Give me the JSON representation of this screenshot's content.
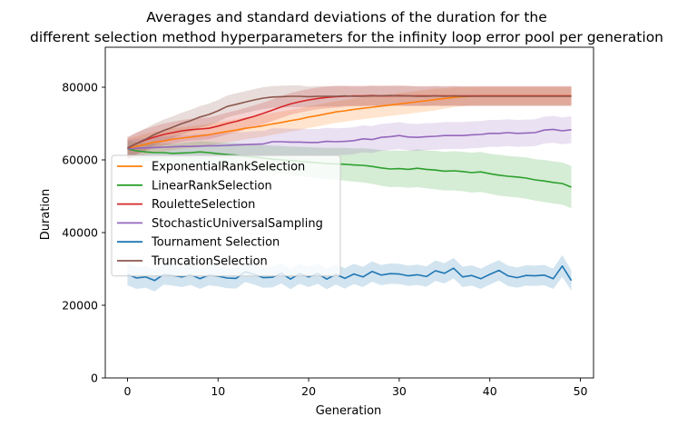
{
  "chart_data": {
    "type": "line",
    "title_lines": [
      "Averages and standard deviations of the duration for the",
      "different selection method hyperparameters for the infinity loop error pool per generation"
    ],
    "xlabel": "Generation",
    "ylabel": "Duration",
    "xlim": [
      -2.45,
      51.45
    ],
    "ylim": [
      0,
      91000
    ],
    "xticks": [
      0,
      10,
      20,
      30,
      40,
      50
    ],
    "yticks": [
      0,
      20000,
      40000,
      60000,
      80000
    ],
    "grid": false,
    "legend_position": "center-left",
    "x_start": 0,
    "series": [
      {
        "name": "ExponentialRankSelection",
        "color": "#ff7f0e",
        "mean": [
          63000,
          63700,
          64300,
          64900,
          65200,
          65700,
          66000,
          66300,
          66600,
          66900,
          67400,
          67800,
          68200,
          68700,
          69000,
          69400,
          69900,
          70300,
          70800,
          71200,
          71800,
          72200,
          72700,
          73200,
          73500,
          73900,
          74200,
          74500,
          74800,
          75100,
          75400,
          75700,
          76000,
          76300,
          76600,
          76900,
          77200,
          77400,
          77500,
          77600,
          77600,
          77600,
          77600,
          77600,
          77600,
          77600,
          77600,
          77600,
          77600,
          77600
        ],
        "std": [
          2800,
          2800,
          2900,
          2900,
          2900,
          3000,
          3000,
          3000,
          3000,
          3000,
          3000,
          3000,
          3000,
          3000,
          3000,
          3000,
          3000,
          3000,
          3000,
          3000,
          3000,
          3000,
          3000,
          3000,
          3000,
          3000,
          3000,
          3000,
          3000,
          3000,
          3000,
          3000,
          3000,
          3000,
          3000,
          2800,
          2700,
          2600,
          2500,
          2500,
          2500,
          2500,
          2500,
          2500,
          2500,
          2500,
          2500,
          2500,
          2500,
          2500
        ]
      },
      {
        "name": "LinearRankSelection",
        "color": "#2ca02c",
        "mean": [
          63000,
          62500,
          62200,
          62000,
          62000,
          61800,
          61900,
          62000,
          62200,
          62000,
          61700,
          61500,
          61300,
          61000,
          60800,
          60500,
          60200,
          60000,
          59800,
          59600,
          59400,
          59200,
          59000,
          58900,
          58800,
          58600,
          58500,
          58200,
          57800,
          57500,
          57600,
          57400,
          57700,
          57400,
          57200,
          56900,
          57000,
          56800,
          56500,
          56700,
          56200,
          55800,
          55500,
          55300,
          55000,
          54500,
          54200,
          53800,
          53500,
          52500
        ],
        "std": [
          2200,
          2300,
          2400,
          2500,
          2600,
          2700,
          2800,
          2900,
          3000,
          3000,
          3100,
          3200,
          3300,
          3400,
          3500,
          3600,
          3700,
          3800,
          3900,
          4000,
          4100,
          4200,
          4300,
          4400,
          4500,
          4600,
          4700,
          4800,
          4900,
          5000,
          5000,
          5100,
          5200,
          5200,
          5300,
          5300,
          5400,
          5400,
          5500,
          5500,
          5500,
          5600,
          5600,
          5600,
          5700,
          5700,
          5800,
          5800,
          5800,
          5800
        ]
      },
      {
        "name": "RouletteSelection",
        "color": "#d62728",
        "mean": [
          63200,
          64500,
          65500,
          66300,
          67000,
          67500,
          68000,
          68300,
          68500,
          68700,
          69300,
          70000,
          70600,
          71300,
          72000,
          72800,
          73700,
          74600,
          75400,
          76000,
          76500,
          76900,
          77200,
          77400,
          77500,
          77600,
          77600,
          77700,
          77600,
          77600,
          77700,
          77600,
          77600,
          77600,
          77600,
          77600,
          77600,
          77600,
          77600,
          77600,
          77600,
          77600,
          77600,
          77600,
          77600,
          77600,
          77600,
          77600,
          77600,
          77600
        ],
        "std": [
          3000,
          3000,
          3000,
          3000,
          3000,
          3000,
          3000,
          3000,
          3000,
          3000,
          3000,
          3000,
          3000,
          3000,
          3000,
          3000,
          3000,
          3000,
          3000,
          3000,
          3000,
          3000,
          3000,
          3000,
          2900,
          2800,
          2800,
          2800,
          2800,
          2800,
          2800,
          2800,
          2700,
          2700,
          2700,
          2700,
          2700,
          2700,
          2700,
          2700,
          2700,
          2700,
          2700,
          2700,
          2700,
          2700,
          2700,
          2700,
          2700,
          2700
        ]
      },
      {
        "name": "StochasticUniversalSampling",
        "color": "#9467bd",
        "mean": [
          63000,
          63200,
          63300,
          63400,
          63500,
          63600,
          63700,
          63700,
          63800,
          63900,
          63900,
          64000,
          64100,
          64200,
          64300,
          64400,
          65000,
          65000,
          64900,
          64900,
          64800,
          64800,
          65100,
          65000,
          65100,
          65300,
          65800,
          65600,
          66200,
          66400,
          66700,
          66300,
          66200,
          66400,
          66500,
          66700,
          66700,
          66700,
          66900,
          67000,
          67300,
          67300,
          67500,
          67300,
          67400,
          67500,
          68200,
          68400,
          68000,
          68300
        ],
        "std": [
          2500,
          2600,
          2700,
          2800,
          2900,
          3000,
          3100,
          3200,
          3300,
          3300,
          3400,
          3400,
          3500,
          3500,
          3600,
          3600,
          3700,
          3700,
          3700,
          3700,
          3700,
          3700,
          3700,
          3700,
          3700,
          3700,
          3700,
          3700,
          3700,
          3700,
          3700,
          3700,
          3700,
          3700,
          3700,
          3700,
          3700,
          3700,
          3700,
          3700,
          3700,
          3700,
          3700,
          3700,
          3700,
          3700,
          3700,
          3700,
          3700,
          3700
        ]
      },
      {
        "name": "Tournament Selection",
        "color": "#1f77b4",
        "mean": [
          28500,
          27500,
          27800,
          26800,
          28500,
          28200,
          27800,
          28400,
          27300,
          28300,
          28000,
          27500,
          27400,
          29200,
          28500,
          27600,
          27700,
          28800,
          27200,
          28700,
          27800,
          28700,
          27200,
          28500,
          27400,
          28600,
          27800,
          29300,
          28300,
          28700,
          28600,
          28100,
          28400,
          27900,
          29500,
          28800,
          30200,
          27800,
          28200,
          27300,
          28500,
          29600,
          28100,
          27600,
          28200,
          28100,
          28300,
          27300,
          30800,
          26800
        ],
        "std": [
          3000,
          3000,
          3000,
          3000,
          2800,
          2800,
          2800,
          2800,
          2800,
          2800,
          2800,
          2800,
          2800,
          2800,
          2800,
          2800,
          2800,
          2800,
          2800,
          2800,
          2800,
          2800,
          2800,
          2800,
          2800,
          2800,
          2800,
          2800,
          2800,
          2800,
          2800,
          2800,
          2800,
          2800,
          2800,
          2800,
          2800,
          2800,
          2800,
          2800,
          2800,
          2800,
          2800,
          2800,
          2800,
          2800,
          2800,
          2800,
          3000,
          2800
        ]
      },
      {
        "name": "TruncationSelection",
        "color": "#8c564b",
        "mean": [
          63300,
          64500,
          65700,
          67000,
          68100,
          69000,
          70000,
          70800,
          71800,
          72500,
          73500,
          74700,
          75300,
          75900,
          76500,
          77000,
          77300,
          77400,
          77500,
          77500,
          77400,
          77500,
          77500,
          77500,
          77600,
          77500,
          77500,
          77600,
          77600,
          77700,
          77600,
          77600,
          77500,
          77500,
          77600,
          77500,
          77600,
          77500,
          77500,
          77500,
          77500,
          77500,
          77500,
          77500,
          77500,
          77500,
          77500,
          77500,
          77500,
          77500
        ],
        "std": [
          3000,
          3000,
          3000,
          3000,
          3000,
          3000,
          3000,
          3000,
          3000,
          3000,
          3000,
          3000,
          3000,
          3000,
          3000,
          3000,
          3000,
          3000,
          3000,
          3000,
          2800,
          2800,
          2800,
          2800,
          2700,
          2700,
          2700,
          2700,
          2700,
          2700,
          2700,
          2700,
          2700,
          2700,
          2700,
          2700,
          2700,
          2700,
          2700,
          2700,
          2700,
          2700,
          2700,
          2700,
          2700,
          2700,
          2700,
          2700,
          2700,
          2700
        ]
      }
    ]
  }
}
